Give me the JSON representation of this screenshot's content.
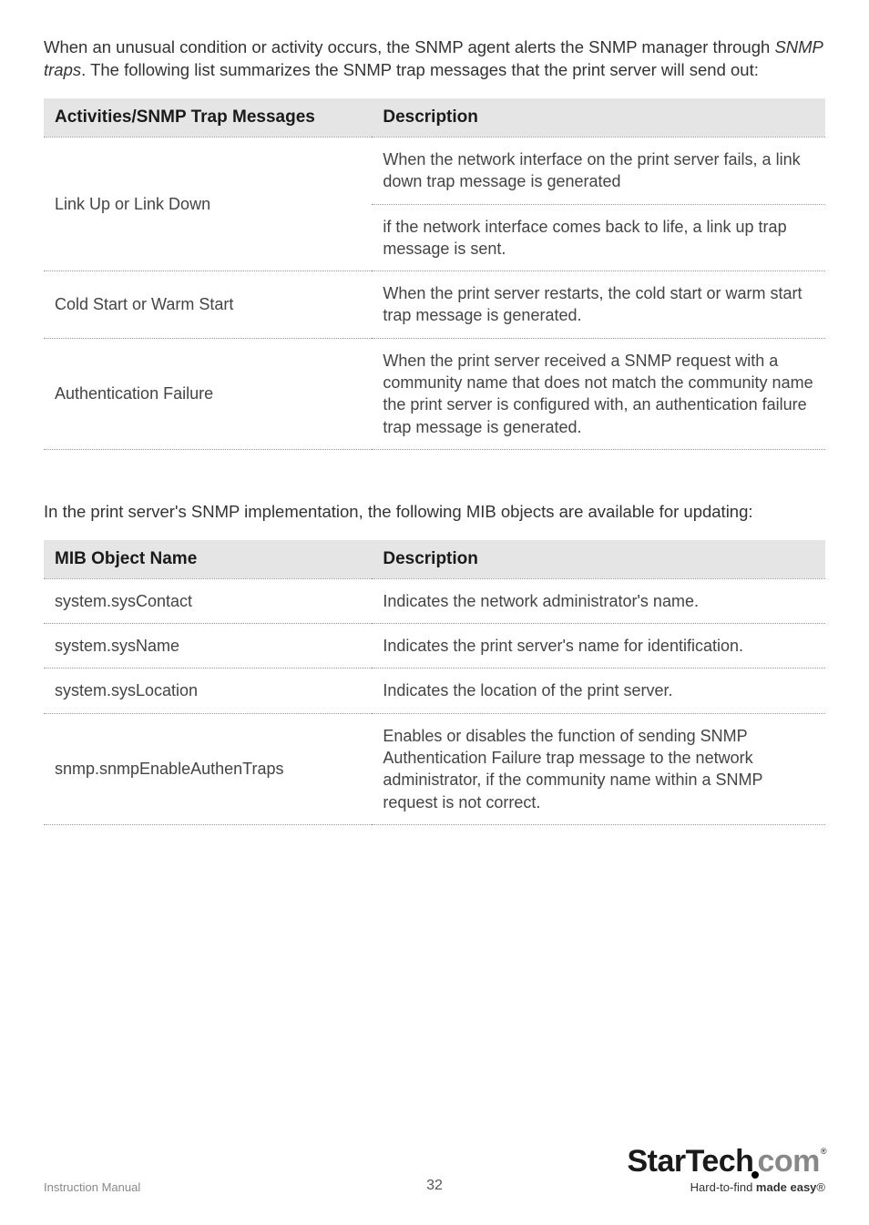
{
  "intro1_html": "When an unusual condition or activity occurs, the SNMP agent alerts the SNMP manager through <em>SNMP traps</em>. The following list summarizes the SNMP trap messages that the print server will send out:",
  "table1": {
    "header": [
      "Activities/SNMP Trap Messages",
      "Description"
    ],
    "rows": [
      {
        "c1": "Link Up or Link Down",
        "c1_rowspan": 2,
        "c2": "When the network interface on the print server fails, a link down trap message is generated"
      },
      {
        "c2": "if the network interface comes back to life, a link up trap message is sent."
      },
      {
        "c1": "Cold Start or Warm Start",
        "c2": "When the print server restarts, the cold start or warm start trap message is generated."
      },
      {
        "c1": "Authentication Failure",
        "c2": "When the print server received a SNMP request with a community name that does not match the community name the print server is configured with, an authentication failure trap message is generated."
      }
    ]
  },
  "intro2": "In the print server's SNMP implementation, the following MIB objects are available for updating:",
  "table2": {
    "header": [
      "MIB Object Name",
      "Description"
    ],
    "rows": [
      {
        "c1": "system.sysContact",
        "c2": "Indicates the network administrator's name."
      },
      {
        "c1": "system.sysName",
        "c2": "Indicates the print server's name for identification."
      },
      {
        "c1": "system.sysLocation",
        "c2": "Indicates the location of the print server."
      },
      {
        "c1": "snmp.snmpEnableAuthenTraps",
        "c2": "Enables or disables the function of sending SNMP Authentication Failure trap message to the network administrator, if the community name within a SNMP request is not correct."
      }
    ]
  },
  "footer": {
    "left": "Instruction Manual",
    "page": "32",
    "logo_brand": "StarTech",
    "logo_suffix": "com",
    "tagline_prefix": "Hard-to-find ",
    "tagline_bold": "made easy",
    "tagline_reg": "®"
  }
}
